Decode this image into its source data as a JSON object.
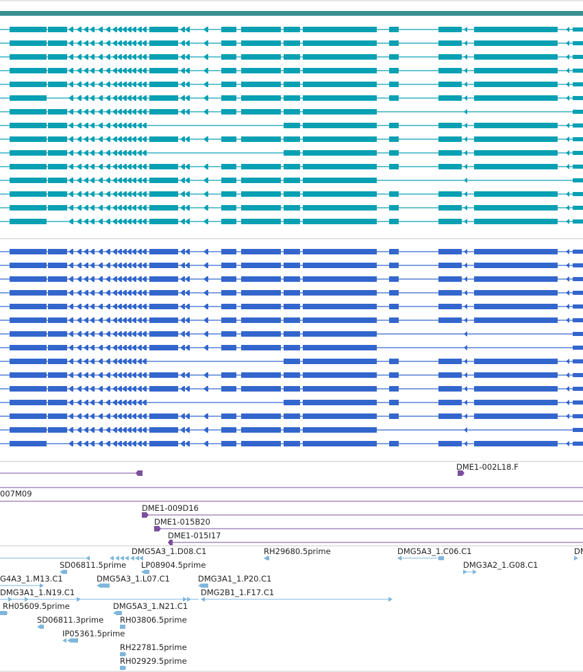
{
  "colors": {
    "header_bar": "#3a9090",
    "track_a": "#0aa0b4",
    "track_b": "#3366cc",
    "clone": "#7b4fa0",
    "est": "#7fb6dc",
    "separator": "#c8c8c8"
  },
  "track_a_rows": [
    [
      1,
      1,
      1,
      1,
      1,
      1,
      1,
      1,
      1,
      1,
      1,
      1,
      1,
      1
    ],
    [
      1,
      1,
      1,
      1,
      1,
      1,
      1,
      1,
      1,
      1,
      1,
      1,
      1,
      1
    ],
    [
      1,
      1,
      1,
      1,
      1,
      1,
      1,
      1,
      1,
      1,
      1,
      1,
      1,
      1
    ],
    [
      1,
      1,
      1,
      1,
      1,
      1,
      1,
      1,
      1,
      1,
      1,
      1,
      1,
      1
    ],
    [
      1,
      1,
      1,
      1,
      1,
      1,
      1,
      1,
      1,
      1,
      1,
      1,
      1,
      1
    ],
    [
      1,
      0,
      1,
      1,
      1,
      1,
      1,
      1,
      1,
      1,
      1,
      1,
      1,
      1
    ],
    [
      1,
      1,
      1,
      1,
      1,
      1,
      1,
      1,
      1,
      1,
      1,
      1,
      0,
      0
    ],
    [
      1,
      1,
      1,
      1,
      1,
      0,
      0,
      0,
      0,
      0,
      1,
      1,
      1,
      1
    ],
    [
      1,
      1,
      1,
      1,
      1,
      1,
      1,
      1,
      1,
      1,
      1,
      1,
      1,
      1
    ],
    [
      1,
      1,
      1,
      1,
      1,
      0,
      0,
      0,
      0,
      0,
      1,
      1,
      1,
      1
    ],
    [
      1,
      1,
      1,
      1,
      1,
      1,
      1,
      1,
      1,
      1,
      1,
      1,
      1,
      1
    ],
    [
      1,
      1,
      1,
      1,
      1,
      1,
      1,
      1,
      1,
      1,
      1,
      1,
      0,
      0
    ],
    [
      1,
      1,
      1,
      1,
      1,
      1,
      1,
      1,
      1,
      1,
      1,
      1,
      1,
      1
    ],
    [
      1,
      1,
      1,
      1,
      1,
      1,
      1,
      1,
      1,
      1,
      1,
      1,
      1,
      1
    ],
    [
      1,
      0,
      1,
      1,
      1,
      1,
      1,
      1,
      1,
      1,
      1,
      1,
      1,
      1
    ]
  ],
  "track_b_rows": [
    [
      1,
      1,
      1,
      1,
      1,
      1,
      1,
      1,
      1,
      1,
      1,
      1,
      1,
      1
    ],
    [
      1,
      1,
      1,
      1,
      1,
      1,
      1,
      1,
      1,
      1,
      1,
      1,
      1,
      1
    ],
    [
      1,
      1,
      1,
      1,
      1,
      1,
      1,
      1,
      1,
      1,
      1,
      1,
      1,
      1
    ],
    [
      1,
      1,
      1,
      1,
      1,
      1,
      1,
      1,
      1,
      1,
      1,
      1,
      1,
      1
    ],
    [
      1,
      1,
      1,
      1,
      1,
      1,
      1,
      1,
      1,
      1,
      1,
      1,
      1,
      1
    ],
    [
      1,
      1,
      1,
      1,
      1,
      1,
      1,
      1,
      1,
      1,
      1,
      1,
      1,
      1
    ],
    [
      1,
      1,
      1,
      1,
      1,
      1,
      1,
      1,
      1,
      1,
      1,
      1,
      0,
      0
    ],
    [
      1,
      1,
      1,
      1,
      1,
      1,
      1,
      1,
      1,
      1,
      1,
      1,
      0,
      0
    ],
    [
      1,
      1,
      1,
      1,
      1,
      0,
      0,
      0,
      0,
      0,
      1,
      1,
      1,
      1
    ],
    [
      1,
      1,
      1,
      1,
      1,
      1,
      1,
      1,
      1,
      1,
      1,
      1,
      1,
      1
    ],
    [
      1,
      1,
      1,
      1,
      1,
      1,
      1,
      1,
      1,
      1,
      1,
      1,
      1,
      1
    ],
    [
      1,
      1,
      1,
      1,
      1,
      0,
      0,
      0,
      0,
      0,
      1,
      1,
      1,
      1
    ],
    [
      1,
      1,
      1,
      1,
      1,
      1,
      1,
      1,
      1,
      1,
      1,
      1,
      1,
      1
    ],
    [
      1,
      1,
      1,
      1,
      1,
      1,
      1,
      1,
      1,
      1,
      1,
      1,
      0,
      0
    ],
    [
      1,
      0,
      1,
      1,
      1,
      1,
      1,
      1,
      1,
      1,
      1,
      1,
      1,
      1
    ]
  ],
  "clone_labels": {
    "dme1_002l18f": "DME1-002L18.F",
    "m09": "007M09",
    "dme1_009d16": "DME1-009D16",
    "dme1_015b20": "DME1-015B20",
    "dme1_015i17": "DME1-015I17"
  },
  "est_labels": [
    "DMG5A3_1.D08.C1",
    "RH29680.5prime",
    "DMG5A3_1.C06.C1",
    "DM",
    "SD06811.5prime",
    "LP08904.5prime",
    "DMG3A2_1.G08.C1",
    "G4A3_1.M13.C1",
    "DMG5A3_1.L07.C1",
    "DMG3A1_1.P20.C1",
    "DMG3A1_1.N19.C1",
    "DMG2B1_1.F17.C1",
    "RH05609.5prime",
    "DMG5A3_1.N21.C1",
    "SD06811.3prime",
    "RH03806.5prime",
    "IP05361.5prime",
    "RH22781.5prime",
    "RH02929.5prime"
  ]
}
